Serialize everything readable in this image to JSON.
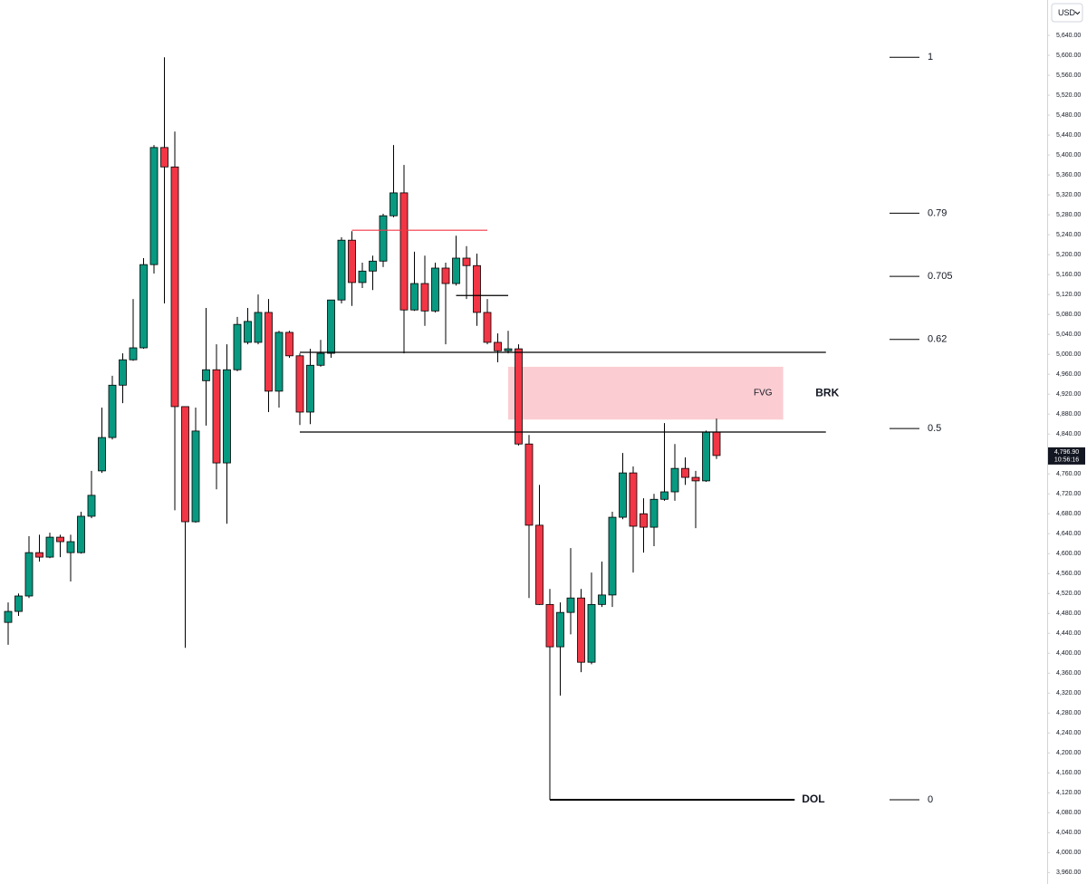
{
  "chart_data": {
    "type": "candlestick",
    "currency": "USD",
    "up_color": "#089981",
    "down_color": "#f23645",
    "ylim": [
      3937,
      5711
    ],
    "yticks": [
      {
        "value": 3960,
        "label": "3,960.00"
      },
      {
        "value": 4000,
        "label": "4,000.00"
      },
      {
        "value": 4040,
        "label": "4,040.00"
      },
      {
        "value": 4080,
        "label": "4,080.00"
      },
      {
        "value": 4120,
        "label": "4,120.00"
      },
      {
        "value": 4160,
        "label": "4,160.00"
      },
      {
        "value": 4200,
        "label": "4,200.00"
      },
      {
        "value": 4240,
        "label": "4,240.00"
      },
      {
        "value": 4280,
        "label": "4,280.00"
      },
      {
        "value": 4320,
        "label": "4,320.00"
      },
      {
        "value": 4360,
        "label": "4,360.00"
      },
      {
        "value": 4400,
        "label": "4,400.00"
      },
      {
        "value": 4440,
        "label": "4,440.00"
      },
      {
        "value": 4480,
        "label": "4,480.00"
      },
      {
        "value": 4520,
        "label": "4,520.00"
      },
      {
        "value": 4560,
        "label": "4,560.00"
      },
      {
        "value": 4600,
        "label": "4,600.00"
      },
      {
        "value": 4640,
        "label": "4,640.00"
      },
      {
        "value": 4680,
        "label": "4,680.00"
      },
      {
        "value": 4720,
        "label": "4,720.00"
      },
      {
        "value": 4760,
        "label": "4,760.00"
      },
      {
        "value": 4800,
        "label": "4,800.00"
      },
      {
        "value": 4840,
        "label": "4,840.00"
      },
      {
        "value": 4880,
        "label": "4,880.00"
      },
      {
        "value": 4920,
        "label": "4,920.00"
      },
      {
        "value": 4960,
        "label": "4,960.00"
      },
      {
        "value": 5000,
        "label": "5,000.00"
      },
      {
        "value": 5040,
        "label": "5,040.00"
      },
      {
        "value": 5080,
        "label": "5,080.00"
      },
      {
        "value": 5120,
        "label": "5,120.00"
      },
      {
        "value": 5160,
        "label": "5,160.00"
      },
      {
        "value": 5200,
        "label": "5,200.00"
      },
      {
        "value": 5240,
        "label": "5,240.00"
      },
      {
        "value": 5280,
        "label": "5,280.00"
      },
      {
        "value": 5320,
        "label": "5,320.00"
      },
      {
        "value": 5360,
        "label": "5,360.00"
      },
      {
        "value": 5400,
        "label": "5,400.00"
      },
      {
        "value": 5440,
        "label": "5,440.00"
      },
      {
        "value": 5480,
        "label": "5,480.00"
      },
      {
        "value": 5520,
        "label": "5,520.00"
      },
      {
        "value": 5560,
        "label": "5,560.00"
      },
      {
        "value": 5600,
        "label": "5,600.00"
      },
      {
        "value": 5640,
        "label": "5,640.00"
      }
    ],
    "open": [
      4462,
      4484,
      4515,
      4602,
      4593,
      4633,
      4602,
      4602,
      4675,
      4766,
      4833,
      4938,
      4989,
      5013,
      5180,
      5415,
      5376,
      4895,
      4664,
      4947,
      4969,
      4782,
      4969,
      5024,
      5024,
      5084,
      4926,
      5044,
      4997,
      4884,
      4978,
      5002,
      5109,
      5229,
      5144,
      5167,
      5187,
      5278,
      5324,
      5089,
      5142,
      5087,
      5173,
      5142,
      5193,
      5178,
      5084,
      5024,
      5007,
      5011,
      4820,
      4657,
      4498,
      4413,
      4482,
      4511,
      4382,
      4498,
      4517,
      4673,
      4762,
      4680,
      4653,
      4709,
      4724,
      4771,
      4753,
      4746,
      4844
    ],
    "high": [
      4502,
      4520,
      4635,
      4638,
      4642,
      4638,
      4638,
      4684,
      4766,
      4893,
      4957,
      5002,
      5111,
      5193,
      5420,
      5596,
      5447,
      4895,
      4893,
      5093,
      5020,
      5020,
      5075,
      5093,
      5120,
      5111,
      5047,
      5047,
      5002,
      5011,
      5029,
      5109,
      5235,
      5247,
      5184,
      5198,
      5282,
      5420,
      5380,
      5206,
      5198,
      5184,
      5184,
      5238,
      5217,
      5202,
      5111,
      5042,
      5047,
      5020,
      4838,
      4738,
      4529,
      4502,
      4611,
      4529,
      4562,
      4584,
      4684,
      4802,
      4775,
      4711,
      4720,
      4862,
      4820,
      4793,
      4766,
      4847,
      4871
    ],
    "low": [
      4417,
      4475,
      4511,
      4584,
      4591,
      4593,
      4544,
      4600,
      4671,
      4762,
      4829,
      4902,
      4987,
      5011,
      5162,
      5102,
      4687,
      4411,
      4662,
      4857,
      4729,
      4660,
      4966,
      5020,
      5020,
      4884,
      4893,
      4993,
      4858,
      4860,
      4975,
      4993,
      5102,
      5097,
      5133,
      5129,
      5175,
      5275,
      5002,
      5087,
      5057,
      5084,
      5020,
      5138,
      5111,
      5057,
      5020,
      4984,
      5002,
      4817,
      4511,
      4497,
      4106,
      4315,
      4438,
      4362,
      4378,
      4493,
      4493,
      4669,
      4562,
      4602,
      4615,
      4706,
      4706,
      4738,
      4651,
      4744,
      4790
    ],
    "close": [
      4484,
      4515,
      4602,
      4593,
      4633,
      4624,
      4624,
      4675,
      4717,
      4833,
      4938,
      4989,
      5013,
      5180,
      5415,
      5376,
      4895,
      4664,
      4846,
      4969,
      4782,
      4969,
      5060,
      5066,
      5084,
      4926,
      5044,
      4997,
      4884,
      4978,
      5002,
      5109,
      5229,
      5144,
      5167,
      5187,
      5278,
      5324,
      5089,
      5142,
      5087,
      5173,
      5142,
      5193,
      5178,
      5084,
      5024,
      5007,
      5011,
      4820,
      4657,
      4498,
      4413,
      4482,
      4511,
      4382,
      4498,
      4517,
      4673,
      4762,
      4655,
      4653,
      4709,
      4724,
      4771,
      4753,
      4746,
      4844,
      4796.9
    ],
    "last_price": {
      "value": 4796.9,
      "label": "4,796.90"
    },
    "countdown": "10:56:16",
    "fib": {
      "low": 4106,
      "high": 5596,
      "levels": [
        1,
        0.79,
        0.705,
        0.62,
        0.5,
        0
      ]
    },
    "annotations": [
      {
        "type": "hline",
        "price": 5004,
        "from": 28,
        "to": 78.5,
        "color": "#000000"
      },
      {
        "type": "hline",
        "price": 4844,
        "from": 28,
        "to": 78.5,
        "color": "#000000"
      },
      {
        "type": "hline",
        "price": 5249,
        "from": 33,
        "to": 46,
        "color": "#f23645"
      },
      {
        "type": "hline",
        "price": 5118,
        "from": 43,
        "to": 48,
        "color": "#000000"
      },
      {
        "type": "hline",
        "price": 4106,
        "from": 52,
        "to": 75.5,
        "color": "#000000",
        "label": "DOL"
      },
      {
        "type": "zone",
        "top": 4975,
        "bottom": 4869,
        "from": 48,
        "to": 74.4,
        "color": "#fbcdd2",
        "label": "FVG"
      },
      {
        "type": "text",
        "price": 4922,
        "at": 77.5,
        "label": "BRK"
      }
    ]
  }
}
